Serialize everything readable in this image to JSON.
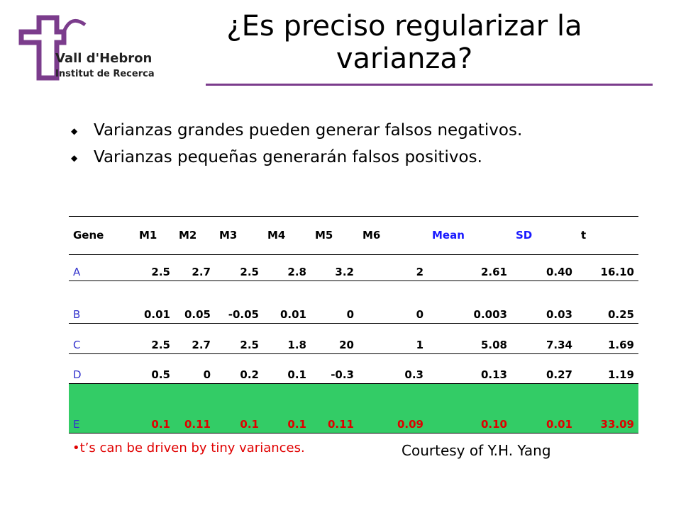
{
  "logo": {
    "name": "Vall d'Hebron",
    "subtitle": "Institut de Recerca"
  },
  "header": {
    "title": "¿Es preciso regularizar la varianza?"
  },
  "bullets": [
    "Varianzas grandes pueden generar falsos negativos.",
    "Varianzas pequeñas generarán falsos positivos."
  ],
  "table": {
    "header": [
      "Gene",
      "M1",
      "M2",
      "M3",
      "M4",
      "M5",
      "M6",
      "Mean",
      "SD",
      "t"
    ],
    "rows": [
      [
        "A",
        "2.5",
        "2.7",
        "2.5",
        "2.8",
        "3.2",
        "2",
        "2.61",
        "0.40",
        "16.10"
      ],
      [
        "B",
        "0.01",
        "0.05",
        "-0.05",
        "0.01",
        "0",
        "0",
        "0.003",
        "0.03",
        "0.25"
      ],
      [
        "C",
        "2.5",
        "2.7",
        "2.5",
        "1.8",
        "20",
        "1",
        "5.08",
        "7.34",
        "1.69"
      ],
      [
        "D",
        "0.5",
        "0",
        "0.2",
        "0.1",
        "-0.3",
        "0.3",
        "0.13",
        "0.27",
        "1.19"
      ],
      [
        "E",
        "0.1",
        "0.11",
        "0.1",
        "0.1",
        "0.11",
        "0.09",
        "0.10",
        "0.01",
        "33.09"
      ]
    ]
  },
  "footnote": "t’s can be driven by tiny variances.",
  "credit": "Courtesy of Y.H. Yang"
}
